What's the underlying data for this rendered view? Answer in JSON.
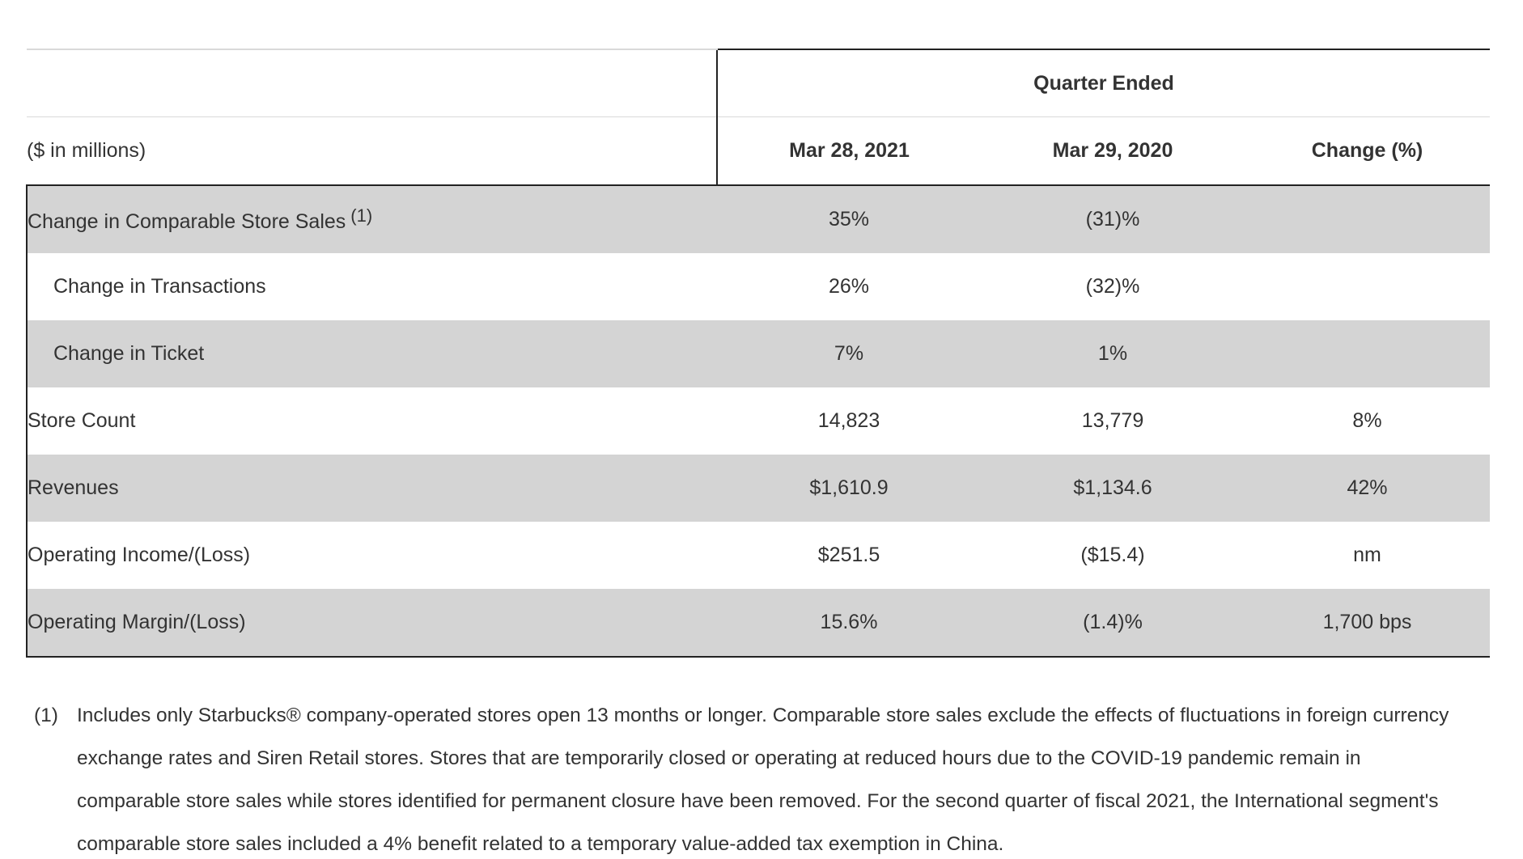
{
  "table": {
    "header": {
      "group_label": "Quarter Ended",
      "units_label": "($ in millions)",
      "columns": [
        "Mar 28, 2021",
        "Mar 29, 2020",
        "Change (%)"
      ]
    },
    "rows": [
      {
        "label": "Change in Comparable Store Sales",
        "footnote_ref": "(1)",
        "values": [
          "35%",
          "(31)%",
          ""
        ]
      },
      {
        "label": "Change in Transactions",
        "values": [
          "26%",
          "(32)%",
          ""
        ]
      },
      {
        "label": "Change in Ticket",
        "values": [
          "7%",
          "1%",
          ""
        ]
      },
      {
        "label": "Store Count",
        "values": [
          "14,823",
          "13,779",
          "8%"
        ]
      },
      {
        "label": "Revenues",
        "values": [
          "$1,610.9",
          "$1,134.6",
          "42%"
        ]
      },
      {
        "label": "Operating Income/(Loss)",
        "values": [
          "$251.5",
          "($15.4)",
          "nm"
        ]
      },
      {
        "label": "Operating Margin/(Loss)",
        "values": [
          "15.6%",
          "(1.4)%",
          "1,700 bps"
        ]
      }
    ]
  },
  "footnote": {
    "marker": "(1)",
    "text": "Includes only Starbucks® company-operated stores open 13 months or longer. Comparable store sales exclude the effects of fluctuations in foreign currency exchange rates and Siren Retail stores. Stores that are temporarily closed or operating at reduced hours due to the COVID-19 pandemic remain in comparable store sales while stores identified for permanent closure have been removed. For the second quarter of fiscal 2021, the International segment's comparable store sales included a 4% benefit related to a temporary value-added tax exemption in China."
  }
}
